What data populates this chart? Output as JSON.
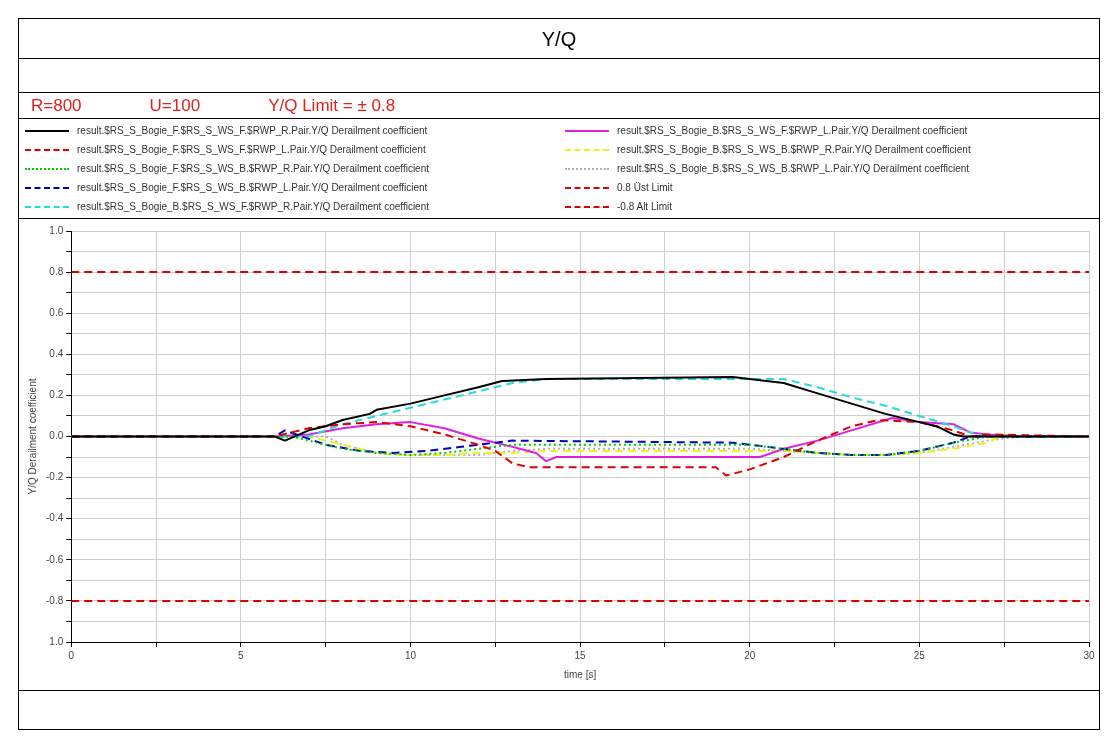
{
  "chart_data": {
    "type": "line",
    "title": "Y/Q",
    "annotations": [
      "R=800",
      "U=100",
      "Y/Q Limit = ± 0.8"
    ],
    "xlabel": "time [s]",
    "ylabel": "Y/Q Derailment coefficient",
    "xlim": [
      0,
      30
    ],
    "xticks": [
      0,
      {
        "value": 2.5,
        "label": null
      },
      5,
      {
        "value": 7.5,
        "label": null
      },
      10,
      {
        "value": 12.5,
        "label": null
      },
      15,
      {
        "value": 17.5,
        "label": null
      },
      20,
      {
        "value": 22.5,
        "label": null
      },
      25,
      {
        "value": 27.5,
        "label": null
      },
      30
    ],
    "ylim": [
      -1,
      1
    ],
    "yticks": [
      {
        "value": -1,
        "label": "1.0"
      },
      {
        "value": -0.9,
        "label": null
      },
      -0.8,
      {
        "value": -0.7,
        "label": null
      },
      -0.6,
      {
        "value": -0.5,
        "label": null
      },
      -0.4,
      {
        "value": -0.3,
        "label": null
      },
      -0.2,
      {
        "value": -0.1,
        "label": null
      },
      {
        "value": 0,
        "label": "0.0"
      },
      {
        "value": 0.1,
        "label": null
      },
      0.2,
      {
        "value": 0.3,
        "label": null
      },
      0.4,
      {
        "value": 0.5,
        "label": null
      },
      0.6,
      {
        "value": 0.7,
        "label": null
      },
      0.8,
      {
        "value": 0.9,
        "label": null
      },
      {
        "value": 1,
        "label": "1.0"
      }
    ],
    "grid": true,
    "legend": "top",
    "marker": "none",
    "series": [
      {
        "name": "result.$RS_S_Bogie_F.$RS_S_WS_F.$RWP_R.Pair.Y/Q Derailment coefficient",
        "color": "#000000",
        "line_style": "solid",
        "x": [
          0,
          6,
          6.3,
          7,
          7.5,
          8,
          8.8,
          9,
          10,
          11,
          12,
          12.7,
          14,
          19.5,
          20,
          21,
          22,
          23,
          24,
          25,
          25.5,
          26,
          26.3,
          30
        ],
        "values": [
          0,
          0,
          -0.02,
          0.03,
          0.05,
          0.08,
          0.11,
          0.13,
          0.16,
          0.2,
          0.24,
          0.27,
          0.28,
          0.29,
          0.28,
          0.26,
          0.21,
          0.16,
          0.11,
          0.07,
          0.05,
          0.01,
          0,
          0
        ]
      },
      {
        "name": "result.$RS_S_Bogie_F.$RS_S_WS_F.$RWP_L.Pair.Y/Q Derailment coefficient",
        "color": "#e00000",
        "line_style": "dashed",
        "x": [
          0,
          6,
          6.5,
          7,
          8,
          9,
          10,
          11,
          12,
          12.5,
          13,
          13.5,
          19,
          19.3,
          20,
          21,
          22,
          23,
          23.8,
          25,
          26,
          26.5,
          27,
          30
        ],
        "values": [
          0,
          0,
          0.02,
          0.04,
          0.06,
          0.07,
          0.05,
          0.01,
          -0.04,
          -0.07,
          -0.13,
          -0.15,
          -0.15,
          -0.19,
          -0.16,
          -0.1,
          -0.02,
          0.05,
          0.08,
          0.07,
          0.03,
          0,
          0.01,
          0
        ]
      },
      {
        "name": "result.$RS_S_Bogie_F.$RS_S_WS_B.$RWP_R.Pair.Y/Q Derailment coefficient",
        "color": "#00cc00",
        "line_style": "dotted",
        "x": [
          0,
          6.5,
          7,
          8,
          9,
          10,
          11,
          12,
          13,
          20,
          21,
          22,
          23,
          24,
          25,
          26,
          27,
          30
        ],
        "values": [
          0,
          0,
          -0.02,
          -0.06,
          -0.08,
          -0.09,
          -0.08,
          -0.06,
          -0.04,
          -0.04,
          -0.06,
          -0.08,
          -0.09,
          -0.09,
          -0.07,
          -0.03,
          0,
          0
        ]
      },
      {
        "name": "result.$RS_S_Bogie_F.$RS_S_WS_B.$RWP_L.Pair.Y/Q Derailment coefficient",
        "color": "#0000c0",
        "line_style": "dashed",
        "x": [
          0,
          6,
          6.3,
          6.8,
          7.5,
          8.5,
          9.5,
          10.5,
          11.5,
          12.5,
          13,
          19.5,
          20.5,
          21.5,
          22,
          23,
          24,
          25,
          26,
          26.5,
          30
        ],
        "values": [
          0,
          0,
          0.03,
          0,
          -0.04,
          -0.07,
          -0.08,
          -0.07,
          -0.05,
          -0.03,
          -0.02,
          -0.03,
          -0.05,
          -0.07,
          -0.08,
          -0.09,
          -0.09,
          -0.07,
          -0.03,
          0,
          0
        ]
      },
      {
        "name": "result.$RS_S_Bogie_B.$RS_S_WS_F.$RWP_R.Pair.Y/Q Derailment coefficient",
        "color": "#22dddd",
        "line_style": "dashed",
        "x": [
          0,
          7,
          8,
          9,
          10,
          11,
          12,
          13,
          14,
          21,
          22,
          23,
          24,
          25,
          26,
          26.5,
          27,
          30
        ],
        "values": [
          0,
          0,
          0.06,
          0.1,
          0.14,
          0.18,
          0.22,
          0.26,
          0.28,
          0.28,
          0.24,
          0.19,
          0.15,
          0.1,
          0.05,
          0.02,
          0,
          0
        ]
      },
      {
        "name": "result.$RS_S_Bogie_B.$RS_S_WS_F.$RWP_L.Pair.Y/Q Derailment coefficient",
        "color": "#e020e0",
        "line_style": "solid",
        "x": [
          0,
          6,
          7,
          8,
          9,
          10,
          11,
          12,
          13,
          13.7,
          14,
          14.3,
          20.3,
          21,
          22,
          23,
          24.2,
          25,
          26,
          26.5,
          27,
          28,
          30
        ],
        "values": [
          0,
          0,
          0.01,
          0.04,
          0.06,
          0.07,
          0.04,
          -0.01,
          -0.05,
          -0.08,
          -0.12,
          -0.1,
          -0.1,
          -0.06,
          -0.02,
          0.03,
          0.09,
          0.07,
          0.06,
          0.02,
          0.01,
          0,
          0
        ]
      },
      {
        "name": "result.$RS_S_Bogie_B.$RS_S_WS_B.$RWP_R.Pair.Y/Q Derailment coefficient",
        "color": "#f0f020",
        "line_style": "dashed",
        "x": [
          0,
          7,
          8,
          9,
          10,
          11,
          12,
          13,
          14,
          20,
          21,
          22,
          23,
          24,
          25,
          26,
          27,
          27.5,
          28,
          30
        ],
        "values": [
          0,
          0,
          -0.04,
          -0.08,
          -0.09,
          -0.09,
          -0.08,
          -0.08,
          -0.07,
          -0.07,
          -0.07,
          -0.08,
          -0.09,
          -0.09,
          -0.08,
          -0.06,
          -0.03,
          0.01,
          0,
          0
        ]
      },
      {
        "name": "result.$RS_S_Bogie_B.$RS_S_WS_B.$RWP_L.Pair.Y/Q Derailment coefficient",
        "color": "#b0b0b0",
        "line_style": "dotted",
        "x": [
          0,
          7.5,
          8,
          9,
          10,
          11,
          12,
          13,
          14,
          20,
          21,
          22,
          23,
          24,
          25,
          26,
          27,
          28,
          30
        ],
        "values": [
          0,
          0,
          -0.04,
          -0.08,
          -0.09,
          -0.09,
          -0.09,
          -0.07,
          -0.06,
          -0.06,
          -0.07,
          -0.08,
          -0.09,
          -0.09,
          -0.08,
          -0.05,
          -0.02,
          0,
          0
        ]
      },
      {
        "name": "0.8 Üst Limit",
        "color": "#e00000",
        "line_style": "dashed",
        "x": [
          0,
          30
        ],
        "values": [
          0.8,
          0.8
        ]
      },
      {
        "name": "-0.8 Alt Limit",
        "color": "#e00000",
        "line_style": "dashed",
        "x": [
          0,
          30
        ],
        "values": [
          -0.8,
          -0.8
        ]
      }
    ]
  }
}
